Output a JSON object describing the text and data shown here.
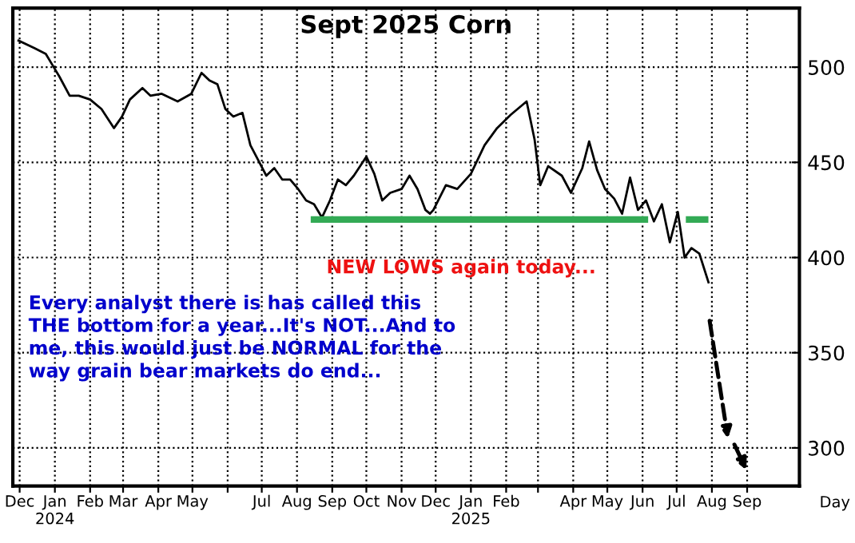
{
  "chart_data": {
    "type": "line",
    "title": "Sept 2025 Corn",
    "x": [
      "2023-11-30",
      "2023-12-14",
      "2023-12-24",
      "2023-12-31",
      "2024-01-05",
      "2024-01-14",
      "2024-01-22",
      "2024-02-01",
      "2024-02-11",
      "2024-02-22",
      "2024-02-29",
      "2024-03-07",
      "2024-03-18",
      "2024-03-25",
      "2024-04-04",
      "2024-04-18",
      "2024-04-30",
      "2024-05-09",
      "2024-05-16",
      "2024-05-23",
      "2024-05-30",
      "2024-06-06",
      "2024-06-14",
      "2024-06-21",
      "2024-06-28",
      "2024-07-05",
      "2024-07-12",
      "2024-07-19",
      "2024-07-26",
      "2024-08-02",
      "2024-08-09",
      "2024-08-16",
      "2024-08-23",
      "2024-08-30",
      "2024-09-06",
      "2024-09-13",
      "2024-09-20",
      "2024-10-01",
      "2024-10-08",
      "2024-10-15",
      "2024-10-22",
      "2024-11-01",
      "2024-11-08",
      "2024-11-15",
      "2024-11-22",
      "2024-11-26",
      "2024-11-29",
      "2024-12-10",
      "2024-12-20",
      "2025-01-01",
      "2025-01-13",
      "2025-01-24",
      "2025-02-05",
      "2025-02-19",
      "2025-02-26",
      "2025-03-03",
      "2025-03-10",
      "2025-03-22",
      "2025-03-30",
      "2025-04-09",
      "2025-04-15",
      "2025-04-22",
      "2025-04-29",
      "2025-05-07",
      "2025-05-14",
      "2025-05-21",
      "2025-05-28",
      "2025-06-04",
      "2025-06-11",
      "2025-06-18",
      "2025-06-25",
      "2025-07-02",
      "2025-07-08",
      "2025-07-14",
      "2025-07-21",
      "2025-07-29"
    ],
    "series": [
      {
        "color": "#000000",
        "values": [
          514,
          510,
          507,
          500,
          495,
          485,
          485,
          483,
          478,
          468,
          474,
          483,
          489,
          485,
          486,
          482,
          486,
          497,
          493,
          491,
          478,
          474,
          476,
          459,
          451,
          443,
          447,
          441,
          441,
          436,
          430,
          428,
          421,
          430,
          441,
          438,
          443,
          453,
          444,
          430,
          434,
          436,
          443,
          436,
          425,
          423,
          425,
          438,
          436,
          444,
          459,
          468,
          475,
          482,
          462,
          438,
          448,
          443,
          434,
          447,
          461,
          446,
          436,
          431,
          423,
          442,
          425,
          430,
          419,
          428,
          408,
          424,
          400,
          405,
          402,
          387
        ]
      },
      {
        "color": "#33aa55",
        "x": [
          "2024-08-16",
          "2025-06-03",
          "2025-06-04",
          "2025-07-12",
          "2025-07-26"
        ],
        "values": [
          420,
          420,
          null,
          420,
          420
        ]
      }
    ],
    "xlim": [
      "2023-11-25",
      "2025-10-17"
    ],
    "xticks": [
      {
        "value": "2023-12-01",
        "label": "Dec"
      },
      {
        "value": "2024-01-01",
        "label": "Jan\n2024"
      },
      {
        "value": "2024-02-01",
        "label": "Feb"
      },
      {
        "value": "2024-03-01",
        "label": "Mar"
      },
      {
        "value": "2024-04-01",
        "label": "Apr"
      },
      {
        "value": "2024-05-01",
        "label": "May"
      },
      {
        "value": "2024-06-01",
        "label": null
      },
      {
        "value": "2024-07-01",
        "label": "Jul"
      },
      {
        "value": "2024-08-01",
        "label": "Aug"
      },
      {
        "value": "2024-09-01",
        "label": "Sep"
      },
      {
        "value": "2024-10-01",
        "label": "Oct"
      },
      {
        "value": "2024-11-01",
        "label": "Nov"
      },
      {
        "value": "2024-12-01",
        "label": "Dec"
      },
      {
        "value": "2025-01-01",
        "label": "Jan\n2025"
      },
      {
        "value": "2025-02-01",
        "label": "Feb"
      },
      {
        "value": "2025-03-01",
        "label": null
      },
      {
        "value": "2025-04-01",
        "label": "Apr"
      },
      {
        "value": "2025-05-01",
        "label": "May"
      },
      {
        "value": "2025-06-01",
        "label": "Jun"
      },
      {
        "value": "2025-07-01",
        "label": "Jul"
      },
      {
        "value": "2025-08-01",
        "label": "Aug"
      },
      {
        "value": "2025-09-01",
        "label": "Sep"
      }
    ],
    "ylim": [
      280,
      531
    ],
    "yticks": [
      300,
      350,
      400,
      450,
      500
    ],
    "grid": true,
    "annotations": [
      "NEW LOWS again today...",
      "Every analyst there is has called this\nTHE bottom for a year...It's NOT...And to\nme, this would just be NORMAL for the\nway grain bear markets do end...",
      "Day"
    ]
  }
}
